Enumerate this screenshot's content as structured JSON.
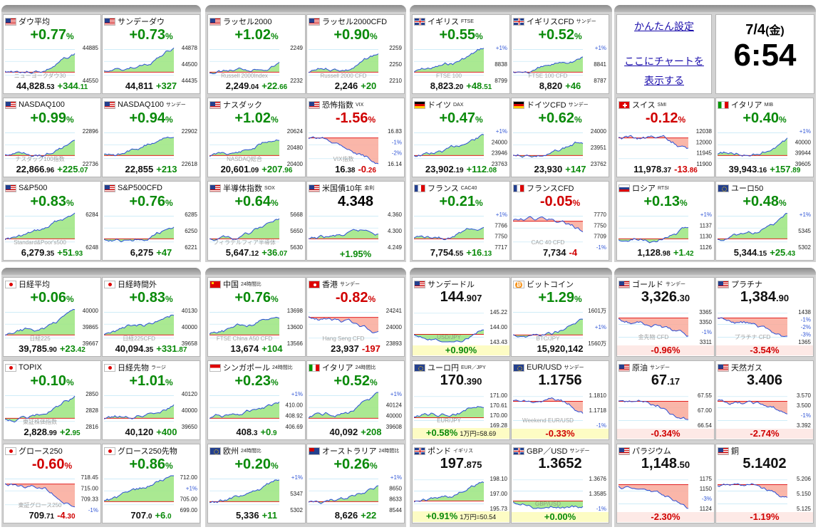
{
  "colors": {
    "up": "#0a8a0a",
    "down": "#d00000",
    "up_fill": "#9be57f",
    "down_fill": "#f9a99a",
    "blue": "#2a4fd6"
  },
  "info": {
    "settings_link": "かんたん設定",
    "chart_link_1": "ここにチャートを",
    "chart_link_2": "表示する",
    "date": "7/4",
    "weekday": "(金)",
    "time": "6:54"
  },
  "tiles": [
    {
      "col": 0,
      "row": 0,
      "name": "ダウ平均",
      "sub": "",
      "flag": "us",
      "pct": "+0.77",
      "dir": "up",
      "price": "44,828",
      "price_dec": ".53",
      "chg": "+344",
      "chg_dec": ".11",
      "axis": [
        "44885",
        "44550"
      ],
      "wm": "ニューヨークダウ30"
    },
    {
      "col": 1,
      "row": 0,
      "name": "サンデーダウ",
      "sub": "",
      "flag": "us",
      "pct": "+0.73",
      "dir": "up",
      "price": "44,811",
      "price_dec": "",
      "chg": "+327",
      "chg_dec": "",
      "axis": [
        "44878",
        "44500",
        "44435"
      ],
      "wm": ""
    },
    {
      "col": 2,
      "row": 0,
      "name": "ラッセル2000",
      "sub": "",
      "flag": "us",
      "pct": "+1.02",
      "dir": "up",
      "price": "2,249",
      "price_dec": ".04",
      "chg": "+22",
      "chg_dec": ".66",
      "axis": [
        "2249",
        "2232"
      ],
      "wm": "Russell 2000Index"
    },
    {
      "col": 3,
      "row": 0,
      "name": "ラッセル2000CFD",
      "sub": "",
      "flag": "us",
      "pct": "+0.90",
      "dir": "up",
      "price": "2,246",
      "price_dec": "",
      "chg": "+20",
      "chg_dec": "",
      "axis": [
        "2259",
        "2250",
        "2210"
      ],
      "wm": "Russell 2000 CFD"
    },
    {
      "col": 4,
      "row": 0,
      "name": "イギリス",
      "sub": "FTSE",
      "flag": "uk",
      "pct": "+0.55",
      "dir": "up",
      "price": "8,823",
      "price_dec": ".20",
      "chg": "+48",
      "chg_dec": ".51",
      "axis": [
        "+1%",
        "8838",
        "8799"
      ],
      "wm": "FTSE 100"
    },
    {
      "col": 5,
      "row": 0,
      "name": "イギリスCFD",
      "sub": "サンデー",
      "flag": "uk",
      "pct": "+0.52",
      "dir": "up",
      "price": "8,820",
      "price_dec": "",
      "chg": "+46",
      "chg_dec": "",
      "axis": [
        "+1%",
        "8841",
        "8787"
      ],
      "wm": "FTSE 100 CFD"
    },
    {
      "col": 0,
      "row": 1,
      "name": "NASDAQ100",
      "sub": "",
      "flag": "us",
      "pct": "+0.99",
      "dir": "up",
      "price": "22,866",
      "price_dec": ".96",
      "chg": "+225",
      "chg_dec": ".07",
      "axis": [
        "22896",
        "22736"
      ],
      "wm": "ナスダック100指数"
    },
    {
      "col": 1,
      "row": 1,
      "name": "NASDAQ100",
      "sub": "サンデー",
      "flag": "us",
      "pct": "+0.94",
      "dir": "up",
      "price": "22,855",
      "price_dec": "",
      "chg": "+213",
      "chg_dec": "",
      "axis": [
        "22902",
        "22618"
      ],
      "wm": ""
    },
    {
      "col": 2,
      "row": 1,
      "name": "ナスダック",
      "sub": "",
      "flag": "us",
      "pct": "+1.02",
      "dir": "up",
      "price": "20,601",
      "price_dec": ".09",
      "chg": "+207",
      "chg_dec": ".96",
      "axis": [
        "20624",
        "20480",
        "20400"
      ],
      "wm": "NASDAQ総合"
    },
    {
      "col": 3,
      "row": 1,
      "name": "恐怖指数",
      "sub": "VIX",
      "flag": "us",
      "pct": "-1.56",
      "dir": "dn",
      "price": "16",
      "price_dec": ".38",
      "chg": "-0",
      "chg_dec": ".26",
      "axis": [
        "16.83",
        "-1%",
        "-2%",
        "16.14"
      ],
      "wm": "VIX指数"
    },
    {
      "col": 4,
      "row": 1,
      "name": "ドイツ",
      "sub": "DAX",
      "flag": "de",
      "pct": "+0.47",
      "dir": "up",
      "price": "23,902",
      "price_dec": ".19",
      "chg": "+112",
      "chg_dec": ".08",
      "axis": [
        "+1%",
        "24000",
        "23946",
        "23763"
      ],
      "wm": ""
    },
    {
      "col": 5,
      "row": 1,
      "name": "ドイツCFD",
      "sub": "サンデー",
      "flag": "de",
      "pct": "+0.62",
      "dir": "up",
      "price": "23,930",
      "price_dec": "",
      "chg": "+147",
      "chg_dec": "",
      "axis": [
        "24000",
        "23951",
        "23762"
      ],
      "wm": ""
    },
    {
      "col": 6,
      "row": 1,
      "name": "スイス",
      "sub": "SMI",
      "flag": "ch",
      "pct": "-0.12",
      "dir": "dn",
      "price": "11,978",
      "price_dec": ".37",
      "chg": "-13",
      "chg_dec": ".86",
      "axis": [
        "12038",
        "12000",
        "11945",
        "11900"
      ],
      "wm": ""
    },
    {
      "col": 7,
      "row": 1,
      "name": "イタリア",
      "sub": "MIB",
      "flag": "it",
      "pct": "+0.40",
      "dir": "up",
      "price": "39,943",
      "price_dec": ".16",
      "chg": "+157",
      "chg_dec": ".89",
      "axis": [
        "+1%",
        "40000",
        "39944",
        "39605"
      ],
      "wm": ""
    },
    {
      "col": 0,
      "row": 2,
      "name": "S&P500",
      "sub": "",
      "flag": "us",
      "pct": "+0.83",
      "dir": "up",
      "price": "6,279",
      "price_dec": ".35",
      "chg": "+51",
      "chg_dec": ".93",
      "axis": [
        "6284",
        "6248"
      ],
      "wm": "Standard&Poor's500"
    },
    {
      "col": 1,
      "row": 2,
      "name": "S&P500CFD",
      "sub": "",
      "flag": "us",
      "pct": "+0.76",
      "dir": "up",
      "price": "6,275",
      "price_dec": "",
      "chg": "+47",
      "chg_dec": "",
      "axis": [
        "6285",
        "6250",
        "6221"
      ],
      "wm": ""
    },
    {
      "col": 2,
      "row": 2,
      "name": "半導体指数",
      "sub": "SOX",
      "flag": "us",
      "pct": "+0.64",
      "dir": "up",
      "price": "5,647",
      "price_dec": ".12",
      "chg": "+36",
      "chg_dec": ".07",
      "axis": [
        "5668",
        "5650",
        "5630"
      ],
      "wm": "フィラデルフィア半導体"
    },
    {
      "col": 3,
      "row": 2,
      "name": "米国債10年",
      "sub": "金利",
      "flag": "us",
      "pct": "4.348",
      "dir": "flat",
      "price": "",
      "price_dec": "",
      "chg": "+1.95%",
      "chg_dec": "",
      "axis": [
        "4.360",
        "4.300",
        "4.249"
      ],
      "wm": ""
    },
    {
      "col": 4,
      "row": 2,
      "name": "フランス",
      "sub": "CAC40",
      "flag": "fr",
      "pct": "+0.21",
      "dir": "up",
      "price": "7,754",
      "price_dec": ".55",
      "chg": "+16",
      "chg_dec": ".13",
      "axis": [
        "+1%",
        "7766",
        "7750",
        "7717"
      ],
      "wm": ""
    },
    {
      "col": 5,
      "row": 2,
      "name": "フランスCFD",
      "sub": "",
      "flag": "fr",
      "pct": "-0.05",
      "dir": "dn",
      "price": "7,734",
      "price_dec": "",
      "chg": "-4",
      "chg_dec": "",
      "axis": [
        "7770",
        "7750",
        "7709",
        "-1%"
      ],
      "wm": "CAC 40 CFD"
    },
    {
      "col": 6,
      "row": 2,
      "name": "ロシア",
      "sub": "RTSI",
      "flag": "ru",
      "pct": "+0.13",
      "dir": "up",
      "price": "1,128",
      "price_dec": ".98",
      "chg": "+1",
      "chg_dec": ".42",
      "axis": [
        "+1%",
        "1137",
        "1130",
        "1126"
      ],
      "wm": ""
    },
    {
      "col": 7,
      "row": 2,
      "name": "ユーロ50",
      "sub": "",
      "flag": "eu",
      "pct": "+0.48",
      "dir": "up",
      "price": "5,344",
      "price_dec": ".15",
      "chg": "+25",
      "chg_dec": ".43",
      "axis": [
        "+1%",
        "5345",
        "5302"
      ],
      "wm": ""
    },
    {
      "col": 0,
      "row": 3,
      "name": "日経平均",
      "sub": "",
      "flag": "jp",
      "pct": "+0.06",
      "dir": "up",
      "price": "39,785",
      "price_dec": ".90",
      "chg": "+23",
      "chg_dec": ".42",
      "axis": [
        "40000",
        "39865",
        "39667"
      ],
      "wm": "日経225"
    },
    {
      "col": 1,
      "row": 3,
      "name": "日経時間外",
      "sub": "",
      "flag": "jp",
      "pct": "+0.83",
      "dir": "up",
      "price": "40,094",
      "price_dec": ".35",
      "chg": "+331",
      "chg_dec": ".87",
      "axis": [
        "40130",
        "40000",
        "39658"
      ],
      "wm": "日経225CFD"
    },
    {
      "col": 2,
      "row": 3,
      "name": "中国",
      "sub": "24時間比",
      "flag": "cn",
      "pct": "+0.76",
      "dir": "up",
      "price": "13,674",
      "price_dec": "",
      "chg": "+104",
      "chg_dec": "",
      "axis": [
        "13698",
        "13600",
        "13566"
      ],
      "wm": "FTSE China A50 CFD"
    },
    {
      "col": 3,
      "row": 3,
      "name": "香港",
      "sub": "サンデー",
      "flag": "hk",
      "pct": "-0.82",
      "dir": "dn",
      "price": "23,937",
      "price_dec": "",
      "chg": "-197",
      "chg_dec": "",
      "axis": [
        "24241",
        "24000",
        "23893"
      ],
      "wm": "Hang Seng CFD"
    },
    {
      "col": 0,
      "row": 4,
      "name": "TOPIX",
      "sub": "",
      "flag": "jp",
      "pct": "+0.10",
      "dir": "up",
      "price": "2,828",
      "price_dec": ".99",
      "chg": "+2",
      "chg_dec": ".95",
      "axis": [
        "2850",
        "2828",
        "2816"
      ],
      "wm": "東証株価指数"
    },
    {
      "col": 1,
      "row": 4,
      "name": "日経先物",
      "sub": "ラージ",
      "flag": "jp",
      "pct": "+1.01",
      "dir": "up",
      "price": "40,120",
      "price_dec": "",
      "chg": "+400",
      "chg_dec": "",
      "axis": [
        "40120",
        "40000",
        "39650"
      ],
      "wm": ""
    },
    {
      "col": 2,
      "row": 4,
      "name": "シンガポール",
      "sub": "24時間比",
      "flag": "sg",
      "pct": "+0.23",
      "dir": "up",
      "price": "408",
      "price_dec": ".3",
      "chg": "+0",
      "chg_dec": ".9",
      "axis": [
        "+1%",
        "410.00",
        "408.92",
        "406.69"
      ],
      "wm": ""
    },
    {
      "col": 3,
      "row": 4,
      "name": "イタリア",
      "sub": "24時間比",
      "flag": "it",
      "pct": "+0.52",
      "dir": "up",
      "price": "40,092",
      "price_dec": "",
      "chg": "+208",
      "chg_dec": "",
      "axis": [
        "+1%",
        "40124",
        "40000",
        "39608"
      ],
      "wm": ""
    },
    {
      "col": 0,
      "row": 5,
      "name": "グロース250",
      "sub": "",
      "flag": "jp",
      "pct": "-0.60",
      "dir": "dn",
      "price": "709",
      "price_dec": ".71",
      "chg": "-4",
      "chg_dec": ".30",
      "axis": [
        "718.45",
        "715.00",
        "709.33",
        "-1%"
      ],
      "wm": "東証グロース250"
    },
    {
      "col": 1,
      "row": 5,
      "name": "グロース250先物",
      "sub": "",
      "flag": "jp",
      "pct": "+0.86",
      "dir": "up",
      "price": "707",
      "price_dec": ".0",
      "chg": "+6",
      "chg_dec": ".0",
      "axis": [
        "712.00",
        "+1%",
        "705.00",
        "699.00"
      ],
      "wm": ""
    },
    {
      "col": 2,
      "row": 5,
      "name": "欧州",
      "sub": "24時間比",
      "flag": "eu",
      "pct": "+0.20",
      "dir": "up",
      "price": "5,336",
      "price_dec": "",
      "chg": "+11",
      "chg_dec": "",
      "axis": [
        "+1%",
        "5347",
        "5302"
      ],
      "wm": ""
    },
    {
      "col": 3,
      "row": 5,
      "name": "オーストラリア",
      "sub": "24時間比",
      "flag": "au",
      "pct": "+0.26",
      "dir": "up",
      "price": "8,626",
      "price_dec": "",
      "chg": "+22",
      "chg_dec": "",
      "axis": [
        "+1%",
        "8650",
        "8633",
        "8544"
      ],
      "wm": ""
    },
    {
      "col": 4,
      "row": 3,
      "name": "サンデードル",
      "sub": "",
      "flag": "us",
      "kind": "fx",
      "top": "144",
      "top_dec": ".907",
      "dir": "up",
      "foot": "+0.90%",
      "note": "",
      "axis": [
        "145.22",
        "144.00",
        "143.43"
      ],
      "wm": "USD/JPY"
    },
    {
      "col": 5,
      "row": 3,
      "name": "ビットコイン",
      "sub": "",
      "flag": "btc",
      "pct": "+1.29",
      "dir": "up",
      "price": "15,920,142",
      "price_dec": "",
      "chg": "",
      "chg_dec": "",
      "axis": [
        "1601万",
        "+1%",
        "1560万"
      ],
      "wm": "BTC/JPY"
    },
    {
      "col": 4,
      "row": 4,
      "name": "ユーロ円",
      "sub": "EUR／JPY",
      "flag": "eu",
      "kind": "fx",
      "top": "170",
      "top_dec": ".390",
      "dir": "up",
      "foot": "+0.58%",
      "note": "1万円=58.69",
      "axis": [
        "171.00",
        "170.61",
        "170.00",
        "169.28"
      ],
      "wm": "EUR/JPY"
    },
    {
      "col": 5,
      "row": 4,
      "name": "EUR/USD",
      "sub": "サンデー",
      "flag": "eu",
      "kind": "fx",
      "top": "1.1756",
      "top_dec": "",
      "dir": "dn",
      "foot": "-0.33%",
      "note": "",
      "axis": [
        "1.1810",
        "1.1718",
        "-1%"
      ],
      "wm": "Weekend EUR/USD"
    },
    {
      "col": 4,
      "row": 5,
      "name": "ポンド",
      "sub": "イギリス",
      "flag": "uk",
      "kind": "fx",
      "top": "197",
      "top_dec": ".875",
      "dir": "up",
      "foot": "+0.91%",
      "note": "1万円=50.54",
      "axis": [
        "198.10",
        "197.00",
        "195.73"
      ],
      "wm": ""
    },
    {
      "col": 5,
      "row": 5,
      "name": "GBP／USD",
      "sub": "サンデー",
      "flag": "uk",
      "kind": "fx",
      "top": "1.3652",
      "top_dec": "",
      "dir": "flat",
      "foot": "+0.00%",
      "note": "",
      "axis": [
        "1.3676",
        "1.3585",
        "-1%"
      ],
      "wm": "GBP/USD"
    },
    {
      "col": 6,
      "row": 3,
      "name": "ゴールド",
      "sub": "サンデー",
      "flag": "us",
      "kind": "cmd",
      "top": "3,326",
      "top_dec": ".30",
      "dir": "dn",
      "foot": "-0.96%",
      "axis": [
        "3365",
        "3350",
        "-1%",
        "3311"
      ],
      "wm": "金先物 CFD"
    },
    {
      "col": 7,
      "row": 3,
      "name": "プラチナ",
      "sub": "",
      "flag": "us",
      "kind": "cmd",
      "top": "1,384",
      "top_dec": ".90",
      "dir": "dn",
      "foot": "-3.54%",
      "axis": [
        "1438",
        "-1%",
        "-2%",
        "-3%",
        "1365"
      ],
      "wm": "プラチナ CFD"
    },
    {
      "col": 6,
      "row": 4,
      "name": "原油",
      "sub": "サンデー",
      "flag": "us",
      "kind": "cmd",
      "top": "67",
      "top_dec": ".17",
      "dir": "dn",
      "foot": "-0.34%",
      "axis": [
        "67.55",
        "67.00",
        "66.54"
      ],
      "wm": ""
    },
    {
      "col": 7,
      "row": 4,
      "name": "天然ガス",
      "sub": "",
      "flag": "us",
      "kind": "cmd",
      "top": "3.406",
      "top_dec": "",
      "dir": "dn",
      "foot": "-2.74%",
      "axis": [
        "3.570",
        "3.500",
        "-1%",
        "3.392"
      ],
      "wm": ""
    },
    {
      "col": 6,
      "row": 5,
      "name": "パラジウム",
      "sub": "",
      "flag": "us",
      "kind": "cmd",
      "top": "1,148",
      "top_dec": ".50",
      "dir": "dn",
      "foot": "-2.30%",
      "axis": [
        "1175",
        "1150",
        "-3%",
        "1124"
      ],
      "wm": ""
    },
    {
      "col": 7,
      "row": 5,
      "name": "銅",
      "sub": "",
      "flag": "us",
      "kind": "cmd",
      "top": "5.1402",
      "top_dec": "",
      "dir": "dn",
      "foot": "-1.19%",
      "axis": [
        "5.206",
        "5.150",
        "5.125"
      ],
      "wm": ""
    }
  ]
}
